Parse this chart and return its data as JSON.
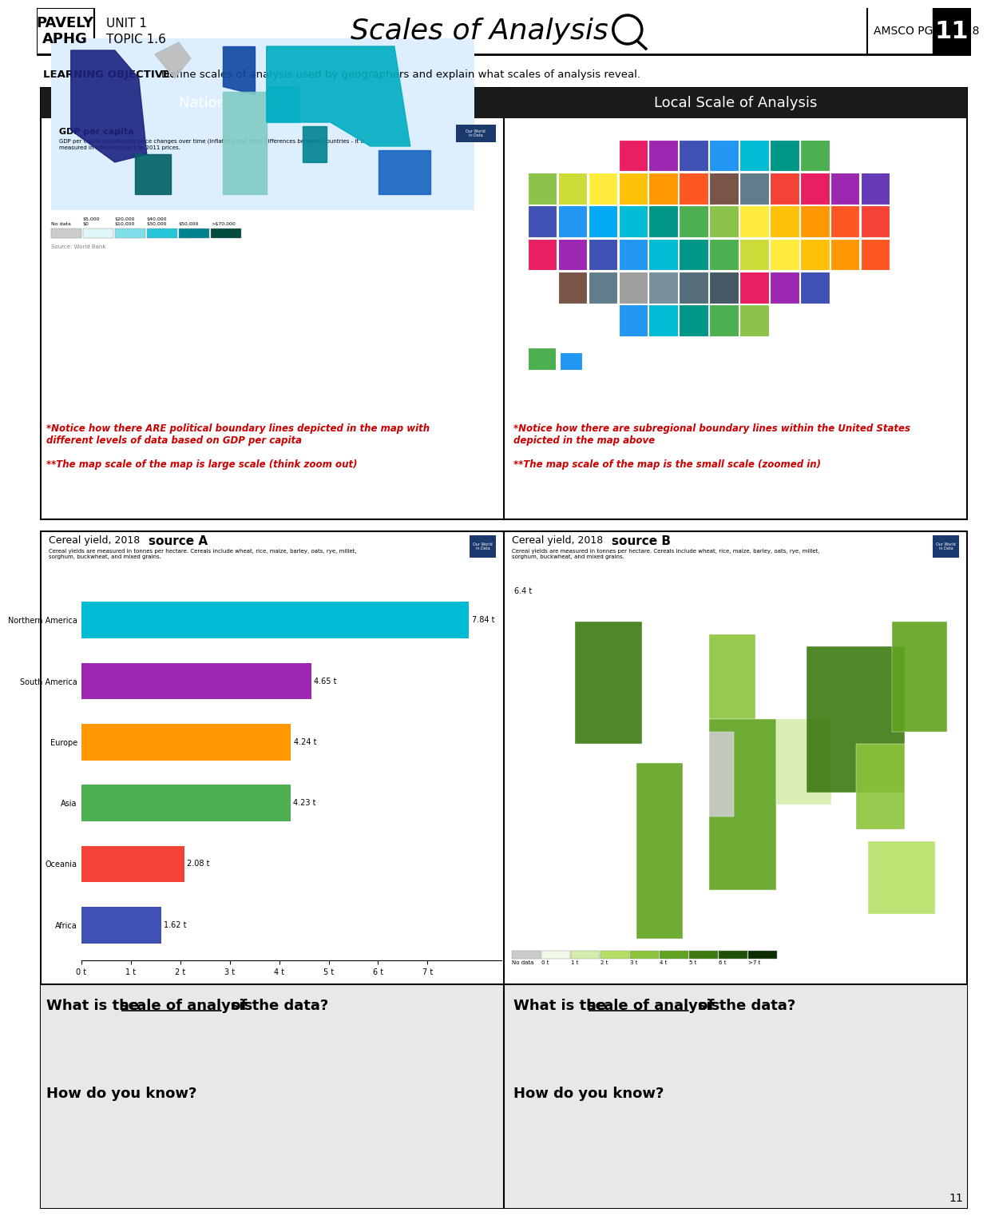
{
  "title": "Scales of Analysis",
  "header_left_line1": "UNIT 1",
  "header_left_line2": "TOPIC 1.6",
  "header_brand_line1": "PAVELY",
  "header_brand_line2": "APHG",
  "header_right": "AMSCO PGS: 17-18",
  "header_page": "11",
  "learning_objective_bold": "LEARNING OBJECTIVE:",
  "learning_objective_text": "Define scales of analysis used by geographers and explain what scales of analysis reveal.",
  "national_title": "National Scale of Analysis",
  "local_title": "Local Scale of Analysis",
  "gdp_title": "GDP per capita",
  "gdp_subtitle": "GDP per capita adjusted for price changes over time (inflation) and price differences between countries - it is\nmeasured in international-$ in 2011 prices.",
  "national_note1": "*Notice how there ARE political boundary lines depicted in the map with\ndifferent levels of data based on GDP per capita",
  "national_note2": "**The map scale of the map is large scale (think zoom out)",
  "local_note1": "*Notice how there are subregional boundary lines within the United States\ndepicted in the map above",
  "local_note2": "**The map scale of the map is the small scale (zoomed in)",
  "cereal_title_a": "Cereal yield, 2018",
  "cereal_source_a": "source A",
  "cereal_subtitle_a": "Cereal yields are measured in tonnes per hectare. Cereals include wheat, rice, maize, barley, oats, rye, millet,\nsorghum, buckwheat, and mixed grains.",
  "cereal_title_b": "Cereal yield, 2018",
  "cereal_source_b": "source B",
  "cereal_subtitle_b": "Cereal yields are measured in tonnes per hectare. Cereals include wheat, rice, maize, barley, oats, rye, millet,\nsorghum, buckwheat, and mixed grains.",
  "bar_categories": [
    "Northern America",
    "South America",
    "Europe",
    "Asia",
    "Oceania",
    "Africa"
  ],
  "bar_values": [
    7.84,
    4.65,
    4.24,
    4.23,
    2.08,
    1.62
  ],
  "bar_labels": [
    "7.84 t",
    "4.65 t",
    "4.24 t",
    "4.23 t",
    "2.08 t",
    "1.62 t"
  ],
  "bar_colors": [
    "#00bcd4",
    "#9c27b0",
    "#ff9800",
    "#4caf50",
    "#f44336",
    "#3f51b5"
  ],
  "source_b_note": "6.4 t",
  "source_b_legend_labels": [
    "No data",
    "0 t",
    "1 t",
    "2 t",
    "3 t",
    "4 t",
    "5 t",
    "6 t",
    ">7 t"
  ],
  "source_b_legend_colors": [
    "#cccccc",
    "#f1f9e8",
    "#d4edaa",
    "#b5e065",
    "#8cc43c",
    "#5fa320",
    "#3d7a10",
    "#1e5206",
    "#0a2e01"
  ],
  "q1_text": "What is the",
  "q1_underline": "scale of analysis",
  "q1_end": "of the data?",
  "q2_text": "How do you know?",
  "page_num": "11",
  "bg_color": "#ffffff",
  "section_header_bg": "#1a1a1a",
  "section_header_fg": "#ffffff",
  "note_color": "#cc0000",
  "border_color": "#000000",
  "light_gray_bg": "#e8e8e8",
  "gdp_legend_colors": [
    "#cccccc",
    "#e0f7fa",
    "#80deea",
    "#26c6da",
    "#00838f",
    "#004d40"
  ],
  "gdp_legend_labels": [
    "No data",
    "$0\n$5,000",
    "$10,000\n$20,000",
    "$30,000\n$40,000",
    "$50,000",
    ">$70,000"
  ],
  "state_colors": [
    "#e91e63",
    "#9c27b0",
    "#3f51b5",
    "#2196f3",
    "#00bcd4",
    "#009688",
    "#4caf50",
    "#8bc34a",
    "#cddc39",
    "#ffeb3b",
    "#ffc107",
    "#ff9800",
    "#ff5722",
    "#795548",
    "#607d8b",
    "#f44336",
    "#e91e63",
    "#9c27b0",
    "#673ab7",
    "#3f51b5",
    "#2196f3",
    "#03a9f4",
    "#00bcd4",
    "#009688",
    "#4caf50",
    "#8bc34a",
    "#ffeb3b",
    "#ffc107",
    "#ff9800",
    "#ff5722",
    "#f44336",
    "#e91e63",
    "#9c27b0",
    "#3f51b5",
    "#2196f3",
    "#00bcd4",
    "#009688",
    "#4caf50",
    "#cddc39",
    "#ffeb3b",
    "#ffc107",
    "#ff9800",
    "#ff5722",
    "#795548",
    "#607d8b",
    "#9e9e9e",
    "#78909c",
    "#546e7a",
    "#455a64"
  ]
}
